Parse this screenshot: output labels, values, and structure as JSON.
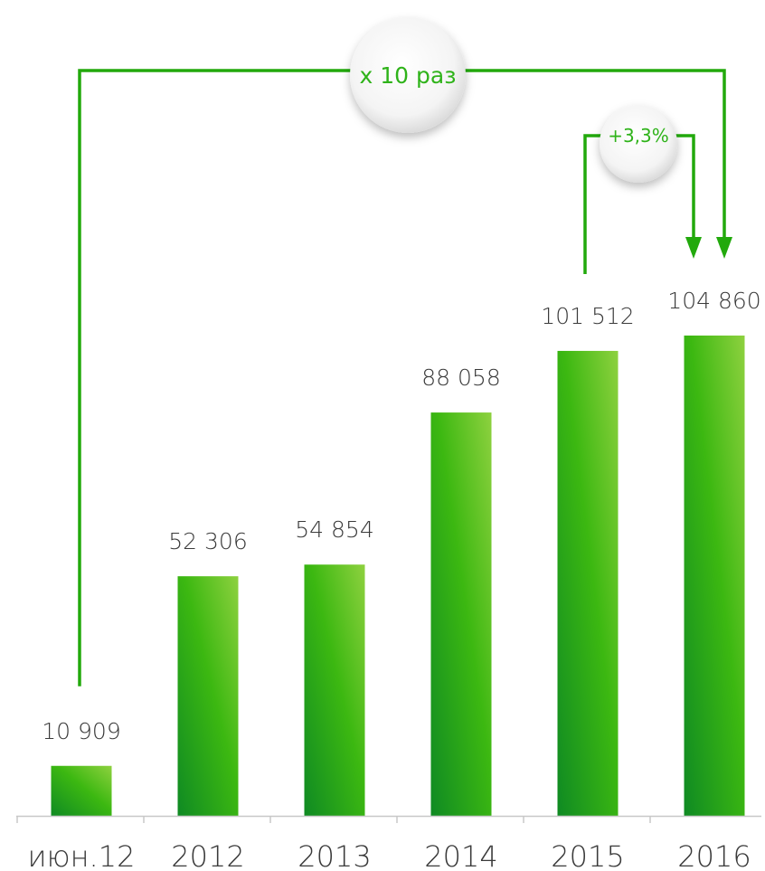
{
  "colors": {
    "bar_light": "#8ed13f",
    "bar_mid": "#3cb811",
    "bar_dark": "#0f8a23",
    "connector": "#22a90c",
    "label_text": "#3a3a3a",
    "axis": "#c8c8c8"
  },
  "chart_data": {
    "type": "bar",
    "categories": [
      "июн.12",
      "2012",
      "2013",
      "2014",
      "2015",
      "2016"
    ],
    "values": [
      10909,
      52306,
      54854,
      88058,
      101512,
      104860
    ],
    "value_labels": [
      "10 909",
      "52 306",
      "54 854",
      "88 058",
      "101 512",
      "104 860"
    ],
    "title": "",
    "xlabel": "",
    "ylabel": "",
    "grid": false,
    "legend": "none",
    "annotations": [
      {
        "text": "x 10 раз",
        "from_category": "июн.12",
        "to_category": "2016"
      },
      {
        "text": "+3,3%",
        "from_category": "2015",
        "to_category": "2016"
      }
    ]
  }
}
